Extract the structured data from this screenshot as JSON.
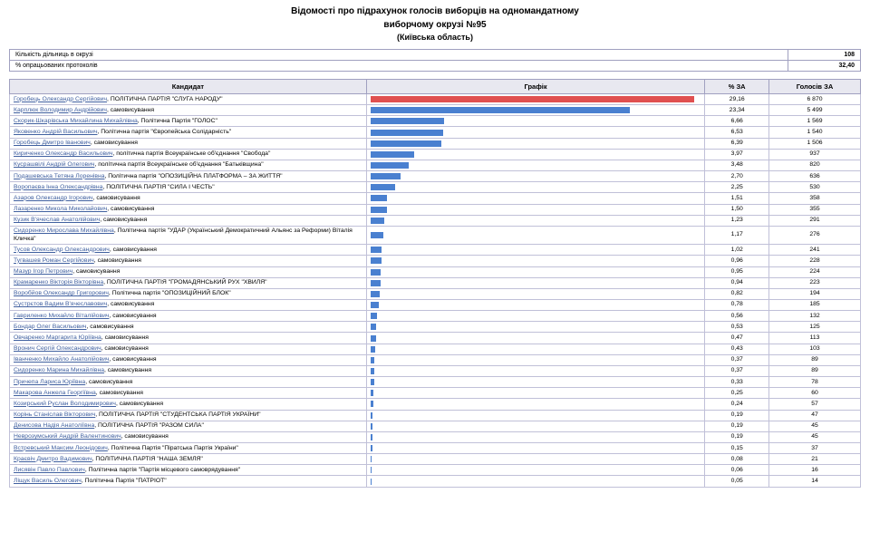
{
  "title_line1": "Відомості про підрахунок голосів виборців на одномандатному",
  "title_line2": "виборчому окрузі №95",
  "subtitle": "(Київська область)",
  "summary": [
    {
      "label": "Кількість дільниць в окрузі",
      "value": "108"
    },
    {
      "label": "% опрацьованих протоколів",
      "value": "32,40"
    }
  ],
  "columns": {
    "candidate": "Кандидат",
    "graph": "Графік",
    "pct": "% ЗА",
    "votes": "Голосів ЗА"
  },
  "bar_max_pct": 29.16,
  "bar_colors": {
    "leader": "#e05050",
    "other": "#4a80d0"
  },
  "rows": [
    {
      "name": "Горобець Олександр Сергійович",
      "party": "ПОЛІТИЧНА ПАРТІЯ \"СЛУГА НАРОДУ\"",
      "pct": "29,16",
      "pct_num": 29.16,
      "votes": "6 870",
      "leader": true
    },
    {
      "name": "Карплюк Володимир Андрійович",
      "party": "самовисування",
      "pct": "23,34",
      "pct_num": 23.34,
      "votes": "5 499"
    },
    {
      "name": "Скорик-Шкарівська Михайлина Михайлівна",
      "party": "Політична Партія \"ГОЛОС\"",
      "pct": "6,66",
      "pct_num": 6.66,
      "votes": "1 569"
    },
    {
      "name": "Яковенко Андрій Васильович",
      "party": "Політична партія \"Європейська Солідарність\"",
      "pct": "6,53",
      "pct_num": 6.53,
      "votes": "1 540"
    },
    {
      "name": "Горобець Дмитро Іванович",
      "party": "самовисування",
      "pct": "6,39",
      "pct_num": 6.39,
      "votes": "1 506"
    },
    {
      "name": "Кириченко Олександр Васильович",
      "party": "політична партія Всеукраїнське об'єднання \"Свобода\"",
      "pct": "3,97",
      "pct_num": 3.97,
      "votes": "937"
    },
    {
      "name": "Кусрашвілі Андрій Олегович",
      "party": "політична партія Всеукраїнське об'єднання \"Батьківщина\"",
      "pct": "3,48",
      "pct_num": 3.48,
      "votes": "820"
    },
    {
      "name": "Подашевська Тетяна Лоренівна",
      "party": "Політична партія \"ОПОЗИЦІЙНА ПЛАТФОРМА – ЗА ЖИТТЯ\"",
      "pct": "2,70",
      "pct_num": 2.7,
      "votes": "636"
    },
    {
      "name": "Воропаєва Інна Олександрівна",
      "party": "ПОЛІТИЧНА ПАРТІЯ \"СИЛА І ЧЕСТЬ\"",
      "pct": "2,25",
      "pct_num": 2.25,
      "votes": "530"
    },
    {
      "name": "Азаров Олександр Ігорович",
      "party": "самовисування",
      "pct": "1,51",
      "pct_num": 1.51,
      "votes": "358"
    },
    {
      "name": "Лазаренко Микола Миколайович",
      "party": "самовисування",
      "pct": "1,50",
      "pct_num": 1.5,
      "votes": "355"
    },
    {
      "name": "Кузик В'ячеслав Анатолійович",
      "party": "самовисування",
      "pct": "1,23",
      "pct_num": 1.23,
      "votes": "291"
    },
    {
      "name": "Сидоренко Мирослава Михайлівна",
      "party": "Політична партія \"УДАР (Український Демократичний Альянс за Реформи) Віталія Кличка\"",
      "pct": "1,17",
      "pct_num": 1.17,
      "votes": "276"
    },
    {
      "name": "Тусов Олександр Олександрович",
      "party": "самовисування",
      "pct": "1,02",
      "pct_num": 1.02,
      "votes": "241"
    },
    {
      "name": "Тугвашев Роман Сергійович",
      "party": "самовисування",
      "pct": "0,96",
      "pct_num": 0.96,
      "votes": "228"
    },
    {
      "name": "Мазур Ігор Петрович",
      "party": "самовисування",
      "pct": "0,95",
      "pct_num": 0.95,
      "votes": "224"
    },
    {
      "name": "Крамаренко Вікторія Вікторівна",
      "party": "ПОЛІТИЧНА ПАРТІЯ \"ГРОМАДЯНСЬКИЙ РУХ \"ХВИЛЯ\"",
      "pct": "0,94",
      "pct_num": 0.94,
      "votes": "223"
    },
    {
      "name": "Воробйов Олександр Григорович",
      "party": "Політична партія \"ОПОЗИЦІЙНИЙ БЛОК\"",
      "pct": "0,82",
      "pct_num": 0.82,
      "votes": "194"
    },
    {
      "name": "Сустрєтов Вадим В'ячеславович",
      "party": "самовисування",
      "pct": "0,78",
      "pct_num": 0.78,
      "votes": "185"
    },
    {
      "name": "Гавриленко Михайло Віталійович",
      "party": "самовисування",
      "pct": "0,56",
      "pct_num": 0.56,
      "votes": "132"
    },
    {
      "name": "Бондар Олег Васильович",
      "party": "самовисування",
      "pct": "0,53",
      "pct_num": 0.53,
      "votes": "125"
    },
    {
      "name": "Овчаренко Маргарита Юріївна",
      "party": "самовисування",
      "pct": "0,47",
      "pct_num": 0.47,
      "votes": "113"
    },
    {
      "name": "Вронич Сергій Олександрович",
      "party": "самовисування",
      "pct": "0,43",
      "pct_num": 0.43,
      "votes": "103"
    },
    {
      "name": "Іванченко Михайло Анатолійович",
      "party": "самовисування",
      "pct": "0,37",
      "pct_num": 0.37,
      "votes": "89"
    },
    {
      "name": "Сидоренко Марина Михайлівна",
      "party": "самовисування",
      "pct": "0,37",
      "pct_num": 0.37,
      "votes": "89"
    },
    {
      "name": "Причепа Лариса Юріївна",
      "party": "самовисування",
      "pct": "0,33",
      "pct_num": 0.33,
      "votes": "78"
    },
    {
      "name": "Макарова Анжела Георгіївна",
      "party": "самовисування",
      "pct": "0,25",
      "pct_num": 0.25,
      "votes": "60"
    },
    {
      "name": "Козирський Руслан Володимирович",
      "party": "самовисування",
      "pct": "0,24",
      "pct_num": 0.24,
      "votes": "57"
    },
    {
      "name": "Корінь Станіслав Вікторович",
      "party": "ПОЛІТИЧНА ПАРТІЯ \"СТУДЕНТСЬКА ПАРТІЯ УКРАЇНИ\"",
      "pct": "0,19",
      "pct_num": 0.19,
      "votes": "47"
    },
    {
      "name": "Денисова Надія Анатоліївна",
      "party": "ПОЛІТИЧНА ПАРТІЯ \"РАЗОМ СИЛА\"",
      "pct": "0,19",
      "pct_num": 0.19,
      "votes": "45"
    },
    {
      "name": "Неврозумський Андрій Валентинович",
      "party": "самовисування",
      "pct": "0,19",
      "pct_num": 0.19,
      "votes": "45"
    },
    {
      "name": "Встревський Максим Леонідович",
      "party": "Політична Партія \"Піратська Партія України\"",
      "pct": "0,15",
      "pct_num": 0.15,
      "votes": "37"
    },
    {
      "name": "Краєвіч Дмитро Вадимович",
      "party": "ПОЛІТИЧНА ПАРТІЯ \"НАША ЗЕМЛЯ\"",
      "pct": "0,08",
      "pct_num": 0.08,
      "votes": "21"
    },
    {
      "name": "Лисявін Павло Павлович",
      "party": "Політична партія \"Партія місцевого самоврядування\"",
      "pct": "0,06",
      "pct_num": 0.06,
      "votes": "16"
    },
    {
      "name": "Ліщук Василь Олегович",
      "party": "Політична Партія \"ПАТРІОТ\"",
      "pct": "0,05",
      "pct_num": 0.05,
      "votes": "14"
    }
  ]
}
